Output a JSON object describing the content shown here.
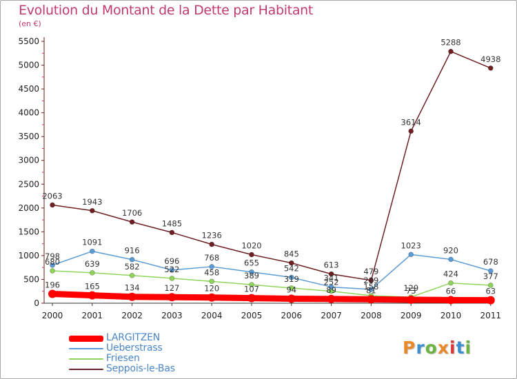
{
  "title": "Evolution du Montant de la Dette par Habitant",
  "subtitle": "(en €)",
  "brand": {
    "chars": [
      "P",
      "r",
      "o",
      "x",
      "i",
      "t",
      "i"
    ],
    "colors": [
      "#e8892a",
      "#3d8fcf",
      "#6cb33f",
      "#e8892a",
      "#d93a3a",
      "#3d8fcf",
      "#6cb33f"
    ]
  },
  "chart_data": {
    "type": "line",
    "title": "Evolution du Montant de la Dette par Habitant",
    "subtitle": "(en €)",
    "xlabel": "",
    "ylabel": "",
    "x": [
      "2000",
      "2001",
      "2002",
      "2003",
      "2004",
      "2005",
      "2006",
      "2007",
      "2008",
      "2009",
      "2010",
      "2011"
    ],
    "ylim": [
      0,
      5500
    ],
    "yticks": [
      0,
      500,
      1000,
      1500,
      2000,
      2500,
      3000,
      3500,
      4000,
      4500,
      5000,
      5500
    ],
    "grid": false,
    "legend": "bottom-left",
    "series": [
      {
        "name": "LARGITZEN",
        "color": "#ff0000",
        "values": [
          196,
          165,
          134,
          127,
          120,
          107,
          94,
          89,
          81,
          73,
          66,
          63
        ],
        "labels": [
          "196",
          "165",
          "134",
          "127",
          "120",
          "107",
          "94",
          "89",
          "81",
          "73",
          "66",
          "63"
        ]
      },
      {
        "name": "Ueberstrass",
        "color": "#5b9bd5",
        "values": [
          798,
          1091,
          916,
          696,
          768,
          655,
          542,
          341,
          289,
          1023,
          920,
          678
        ],
        "labels": [
          "798",
          "1091",
          "916",
          "696",
          "768",
          "655",
          "542",
          "341",
          "289",
          "1023",
          "920",
          "678"
        ]
      },
      {
        "name": "Friesen",
        "color": "#8fd45a",
        "values": [
          680,
          639,
          582,
          522,
          458,
          389,
          319,
          252,
          158,
          129,
          424,
          377
        ],
        "labels": [
          "680",
          "639",
          "582",
          "522",
          "458",
          "389",
          "319",
          "252",
          "158",
          "129",
          "424",
          "377"
        ]
      },
      {
        "name": "Seppois-le-Bas",
        "color": "#6e1f22",
        "values": [
          2063,
          1943,
          1706,
          1485,
          1236,
          1020,
          845,
          613,
          479,
          3614,
          5288,
          4938
        ],
        "labels": [
          "2063",
          "1943",
          "1706",
          "1485",
          "1236",
          "1020",
          "845",
          "613",
          "479",
          "3614",
          "5288",
          "4938"
        ]
      }
    ]
  }
}
